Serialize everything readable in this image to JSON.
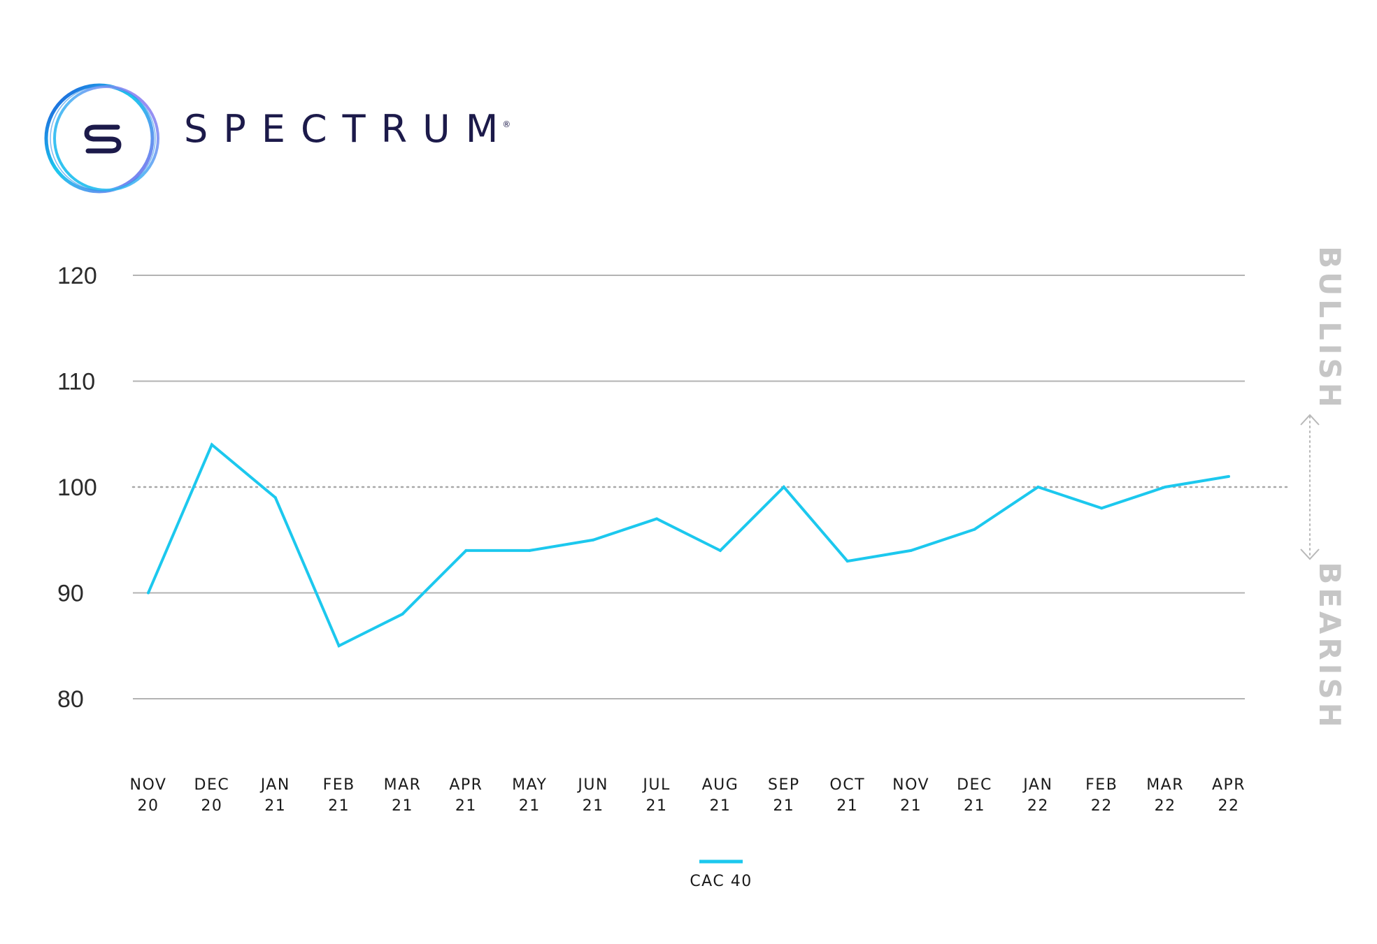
{
  "brand": {
    "name": "SPECTRUM",
    "trademark": "®",
    "logo_letter": "S"
  },
  "colors": {
    "line": "#1cc8ee",
    "gridline": "#b3b3b3",
    "reference_line": "#a8a8a8",
    "side_label": "#c6c6c6",
    "brand_text": "#1c1a4a"
  },
  "chart_data": {
    "type": "line",
    "categories": [
      [
        "NOV",
        "20"
      ],
      [
        "DEC",
        "20"
      ],
      [
        "JAN",
        "21"
      ],
      [
        "FEB",
        "21"
      ],
      [
        "MAR",
        "21"
      ],
      [
        "APR",
        "21"
      ],
      [
        "MAY",
        "21"
      ],
      [
        "JUN",
        "21"
      ],
      [
        "JUL",
        "21"
      ],
      [
        "AUG",
        "21"
      ],
      [
        "SEP",
        "21"
      ],
      [
        "OCT",
        "21"
      ],
      [
        "NOV",
        "21"
      ],
      [
        "DEC",
        "21"
      ],
      [
        "JAN",
        "22"
      ],
      [
        "FEB",
        "22"
      ],
      [
        "MAR",
        "22"
      ],
      [
        "APR",
        "22"
      ]
    ],
    "series": [
      {
        "name": "CAC 40",
        "values": [
          90,
          104,
          99,
          85,
          88,
          94,
          94,
          95,
          97,
          94,
          100,
          93,
          94,
          96,
          100,
          98,
          100,
          101
        ]
      }
    ],
    "yticks": [
      80,
      90,
      100,
      110,
      120
    ],
    "ylim": [
      80,
      120
    ],
    "reference_value": 100,
    "grid": true,
    "legend_position": "bottom-center",
    "side_labels": {
      "top": "BULLISH",
      "bottom": "BEARISH"
    }
  }
}
